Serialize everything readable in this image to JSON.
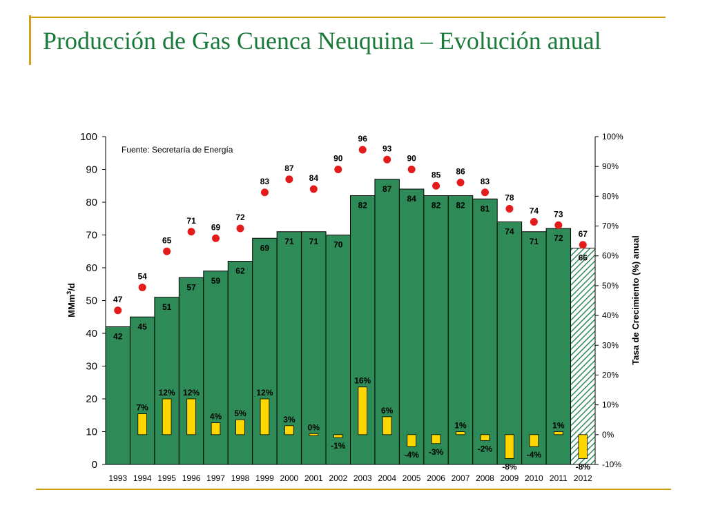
{
  "slide": {
    "title": "Producción de Gas Cuenca Neuquina  – Evolución anual",
    "colors": {
      "accent_line": "#d4a017",
      "title": "#1a7a3a"
    }
  },
  "chart_data": {
    "type": "bar",
    "categories": [
      "1993",
      "1994",
      "1995",
      "1996",
      "1997",
      "1998",
      "1999",
      "2000",
      "2001",
      "2002",
      "2003",
      "2004",
      "2005",
      "2006",
      "2007",
      "2008",
      "2009",
      "2010",
      "2011",
      "2012"
    ],
    "annotation": "Fuente: Secretaría de Energía",
    "ylabel": "MMm3/d",
    "ylabel_right": "Tasa de Crecimiento (%) anual",
    "ylim": [
      0,
      100
    ],
    "yticks": [
      "0",
      "10",
      "20",
      "30",
      "40",
      "50",
      "60",
      "70",
      "80",
      "90",
      "100"
    ],
    "ylim_right": [
      -10,
      100
    ],
    "yticks_right": [
      "-10%",
      "0%",
      "10%",
      "20%",
      "30%",
      "40%",
      "50%",
      "60%",
      "70%",
      "80%",
      "90%",
      "100%"
    ],
    "grid": "none",
    "series": [
      {
        "kind": "bar",
        "color": "#2e8b57",
        "values": [
          42,
          45,
          51,
          57,
          59,
          62,
          69,
          71,
          71,
          70,
          82,
          87,
          84,
          82,
          82,
          81,
          74,
          71,
          72,
          66
        ],
        "labels": [
          "42",
          "45",
          "51",
          "57",
          "59",
          "62",
          "69",
          "71",
          "71",
          "70",
          "82",
          "87",
          "84",
          "82",
          "82",
          "81",
          "74",
          "71",
          "72",
          "66"
        ],
        "hatched_last": true
      },
      {
        "kind": "points",
        "color": "#e31b1b",
        "values": [
          47,
          54,
          65,
          71,
          69,
          72,
          83,
          87,
          84,
          90,
          96,
          93,
          90,
          85,
          86,
          83,
          78,
          74,
          73,
          67
        ],
        "labels": [
          "47",
          "54",
          "65",
          "71",
          "69",
          "72",
          "83",
          "87",
          "84",
          "90",
          "96",
          "93",
          "90",
          "85",
          "86",
          "83",
          "78",
          "74",
          "73",
          "67"
        ]
      },
      {
        "kind": "growth_bar",
        "axis": "right",
        "color": "#ffd700",
        "values": [
          null,
          7,
          12,
          12,
          4,
          5,
          12,
          3,
          0,
          -1,
          16,
          6,
          -4,
          -3,
          1,
          -2,
          -8,
          -4,
          1,
          -8
        ],
        "labels": [
          "",
          "7%",
          "12%",
          "12%",
          "4%",
          "5%",
          "12%",
          "3%",
          "0%",
          "-1%",
          "16%",
          "6%",
          "-4%",
          "-3%",
          "1%",
          "-2%",
          "-8%",
          "-4%",
          "1%",
          "-8%"
        ]
      }
    ]
  }
}
